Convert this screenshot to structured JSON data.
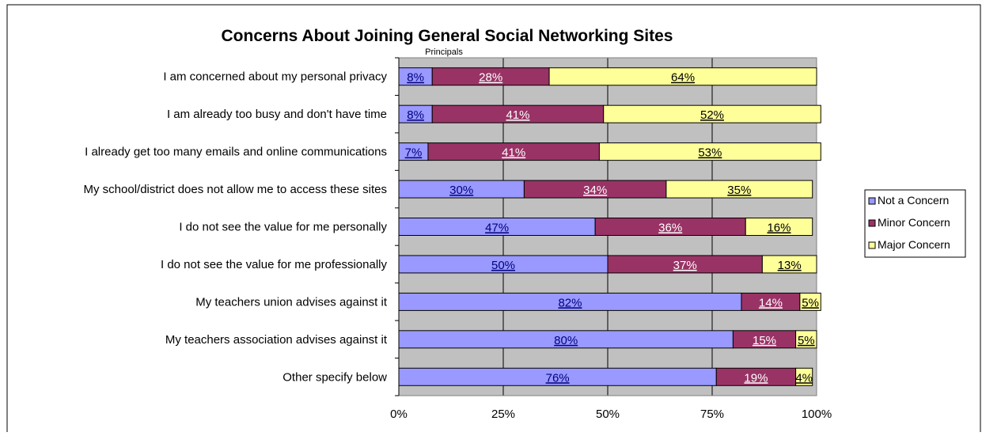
{
  "chart_data": {
    "type": "bar",
    "orientation": "horizontal",
    "stacked": true,
    "title": "Concerns About Joining General Social Networking Sites",
    "subtitle": "Principals",
    "categories": [
      "I am concerned about my personal privacy",
      "I am already too busy and don't have time",
      "I already get too many emails and online communications",
      "My school/district does not allow me to access these sites",
      "I do not see the value for me personally",
      "I do not see the value for me professionally",
      "My teachers union advises against it",
      "My teachers association advises against it",
      "Other specify below"
    ],
    "series": [
      {
        "name": "Not a Concern",
        "color": "#9999ff",
        "label_color": "#000080",
        "values": [
          8,
          8,
          7,
          30,
          47,
          50,
          82,
          80,
          76
        ]
      },
      {
        "name": "Minor Concern",
        "color": "#993366",
        "label_color": "#ffffff",
        "values": [
          28,
          41,
          41,
          34,
          36,
          37,
          14,
          15,
          19
        ]
      },
      {
        "name": "Major Concern",
        "color": "#ffff99",
        "label_color": "#000000",
        "values": [
          64,
          52,
          53,
          35,
          16,
          13,
          5,
          5,
          4
        ]
      }
    ],
    "xlim": [
      0,
      100
    ],
    "x_ticks": [
      "0%",
      "25%",
      "50%",
      "75%",
      "100%"
    ],
    "grid": true,
    "plot_background": "#c0c0c0",
    "legend_position": "right"
  }
}
